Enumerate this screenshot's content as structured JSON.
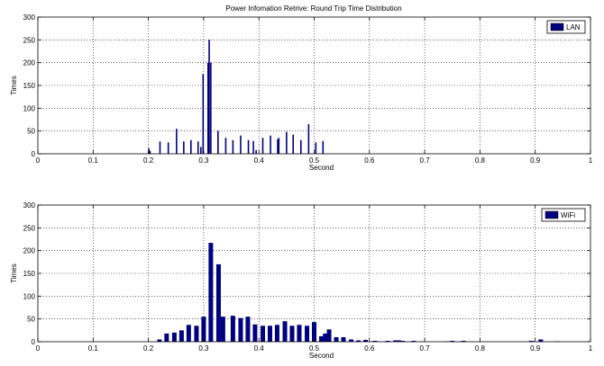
{
  "chart_data": [
    {
      "type": "bar",
      "title": "Power Infomation Retrive: Round Trip Time Distribution",
      "xlabel": "Second",
      "ylabel": "Times",
      "xlim": [
        0,
        1
      ],
      "ylim": [
        0,
        300
      ],
      "xticks": [
        "0",
        "0.1",
        "0.2",
        "0.3",
        "0.4",
        "0.5",
        "0.6",
        "0.7",
        "0.8",
        "0.9",
        "1"
      ],
      "yticks": [
        "0",
        "50",
        "100",
        "150",
        "200",
        "250",
        "300"
      ],
      "grid": true,
      "legend_position": "top-right",
      "color": "#00007f",
      "series": [
        {
          "name": "LAN",
          "x": [
            0.201,
            0.203,
            0.221,
            0.236,
            0.251,
            0.264,
            0.277,
            0.29,
            0.295,
            0.299,
            0.308,
            0.31,
            0.313,
            0.326,
            0.34,
            0.353,
            0.367,
            0.381,
            0.39,
            0.395,
            0.407,
            0.421,
            0.434,
            0.436,
            0.45,
            0.462,
            0.476,
            0.49,
            0.503,
            0.516
          ],
          "values": [
            12,
            6,
            27,
            25,
            55,
            27,
            30,
            27,
            15,
            175,
            200,
            250,
            200,
            50,
            35,
            30,
            40,
            30,
            28,
            8,
            35,
            40,
            32,
            35,
            48,
            42,
            30,
            65,
            25,
            28
          ]
        }
      ]
    },
    {
      "type": "bar",
      "title": "",
      "xlabel": "Second",
      "ylabel": "Times",
      "xlim": [
        0,
        1
      ],
      "ylim": [
        0,
        300
      ],
      "xticks": [
        "0",
        "0.1",
        "0.2",
        "0.3",
        "0.4",
        "0.5",
        "0.6",
        "0.7",
        "0.8",
        "0.9",
        "1"
      ],
      "yticks": [
        "0",
        "50",
        "100",
        "150",
        "200",
        "250",
        "300"
      ],
      "grid": true,
      "legend_position": "top-right",
      "color": "#00007f",
      "series": [
        {
          "name": "WiFi",
          "x": [
            0.22,
            0.233,
            0.247,
            0.26,
            0.273,
            0.287,
            0.3,
            0.313,
            0.327,
            0.335,
            0.353,
            0.367,
            0.38,
            0.393,
            0.407,
            0.42,
            0.433,
            0.447,
            0.46,
            0.473,
            0.487,
            0.5,
            0.513,
            0.52,
            0.527,
            0.54,
            0.553,
            0.567,
            0.58,
            0.593,
            0.61,
            0.633,
            0.647,
            0.653,
            0.66,
            0.68,
            0.74,
            0.75,
            0.77,
            0.893,
            0.91,
            0.94
          ],
          "values": [
            5,
            18,
            20,
            25,
            37,
            35,
            55,
            217,
            170,
            55,
            57,
            52,
            55,
            38,
            35,
            35,
            37,
            45,
            35,
            37,
            35,
            43,
            12,
            18,
            27,
            10,
            10,
            5,
            3,
            4,
            2,
            2,
            3,
            3,
            2,
            2,
            1,
            2,
            2,
            2,
            5,
            1
          ]
        }
      ]
    }
  ]
}
